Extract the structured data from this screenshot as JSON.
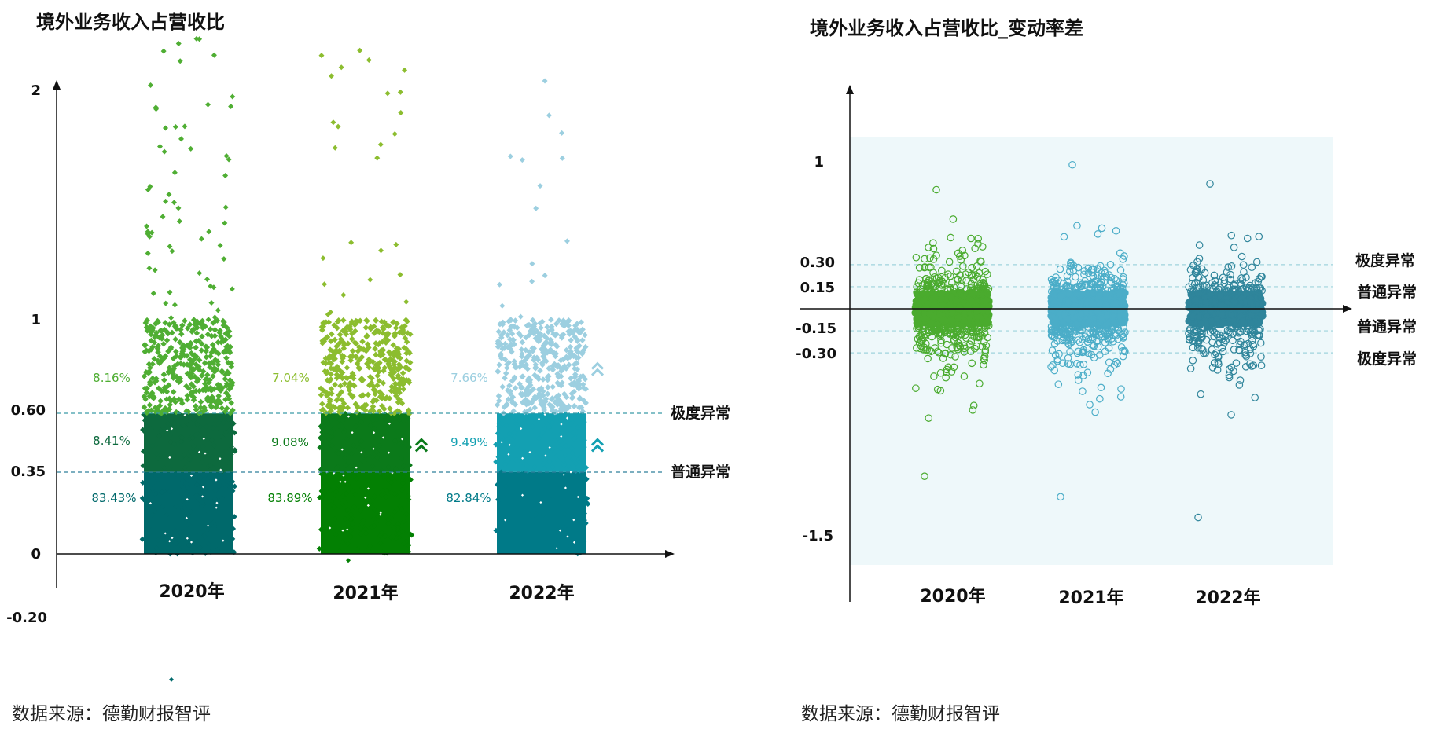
{
  "chart_data": [
    {
      "type": "scatter",
      "title": "境外业务收入占营收比",
      "categories": [
        "2020年",
        "2021年",
        "2022年"
      ],
      "yticks": [
        "2",
        "1",
        "0.60",
        "0.35",
        "0",
        "-0.20"
      ],
      "ytick_values": [
        2,
        1,
        0.6,
        0.35,
        0,
        -0.2
      ],
      "thresholds": [
        {
          "value": 0.6,
          "label": "极度异常"
        },
        {
          "value": 0.35,
          "label": "普通异常"
        }
      ],
      "bands": [
        "0.60-1",
        "0.35-0.60",
        "0-0.35"
      ],
      "series": [
        {
          "name": "2020年",
          "band_percentages": [
            "8.16%",
            "8.41%",
            "83.43%"
          ],
          "band_colors": [
            "#4fae33",
            "#0d6a3e",
            "#00696b"
          ],
          "outliers_above_1": 60,
          "min_value": -0.39,
          "max_value": 2.2,
          "up_arrows": [
            false,
            false
          ]
        },
        {
          "name": "2021年",
          "band_percentages": [
            "7.04%",
            "9.08%",
            "83.89%"
          ],
          "band_colors": [
            "#8cbd2f",
            "#0b7a1a",
            "#038003"
          ],
          "outliers_above_1": 25,
          "min_value": -0.02,
          "max_value": 2.15,
          "up_arrows": [
            false,
            true
          ]
        },
        {
          "name": "2022年",
          "band_percentages": [
            "7.66%",
            "9.49%",
            "82.84%"
          ],
          "band_colors": [
            "#9ccfe0",
            "#13a0b2",
            "#007a88"
          ],
          "outliers_above_1": 14,
          "min_value": 0,
          "max_value": 2.02,
          "up_arrows": [
            true,
            true
          ]
        }
      ],
      "percent_label_colors": [
        "#4fae33",
        "#0d6a3e",
        "#00696b",
        "#8cbd2f",
        "#0b7a1a",
        "#038003",
        "#9ccfe0",
        "#13a0b2",
        "#007a88"
      ],
      "ylim": [
        -0.4,
        2.2
      ]
    },
    {
      "type": "scatter",
      "title": "境外业务收入占营收比_变动率差",
      "categories": [
        "2020年",
        "2021年",
        "2022年"
      ],
      "yticks": [
        "1",
        "0.30",
        "0.15",
        "-0.15",
        "-0.30",
        "-1.5"
      ],
      "ytick_values": [
        1,
        0.3,
        0.15,
        -0.15,
        -0.3,
        -1.5
      ],
      "thresholds": [
        {
          "value": 0.3,
          "label": "极度异常"
        },
        {
          "value": 0.15,
          "label": "普通异常"
        },
        {
          "value": -0.15,
          "label": "普通异常"
        },
        {
          "value": -0.3,
          "label": "极度异常"
        }
      ],
      "series": [
        {
          "name": "2020年",
          "color": "#4aab2e",
          "points": 900,
          "min_value": -1.14,
          "max_value": 0.81
        },
        {
          "name": "2021年",
          "color": "#4badc8",
          "points": 900,
          "min_value": -1.28,
          "max_value": 0.98
        },
        {
          "name": "2022年",
          "color": "#2f859b",
          "points": 700,
          "min_value": -1.42,
          "max_value": 0.85
        }
      ],
      "ylim": [
        -1.6,
        1.1
      ],
      "background": "#eef8fa"
    }
  ],
  "footer": {
    "left_source": "数据来源：德勤财报智评",
    "right_source": "数据来源：德勤财报智评"
  }
}
